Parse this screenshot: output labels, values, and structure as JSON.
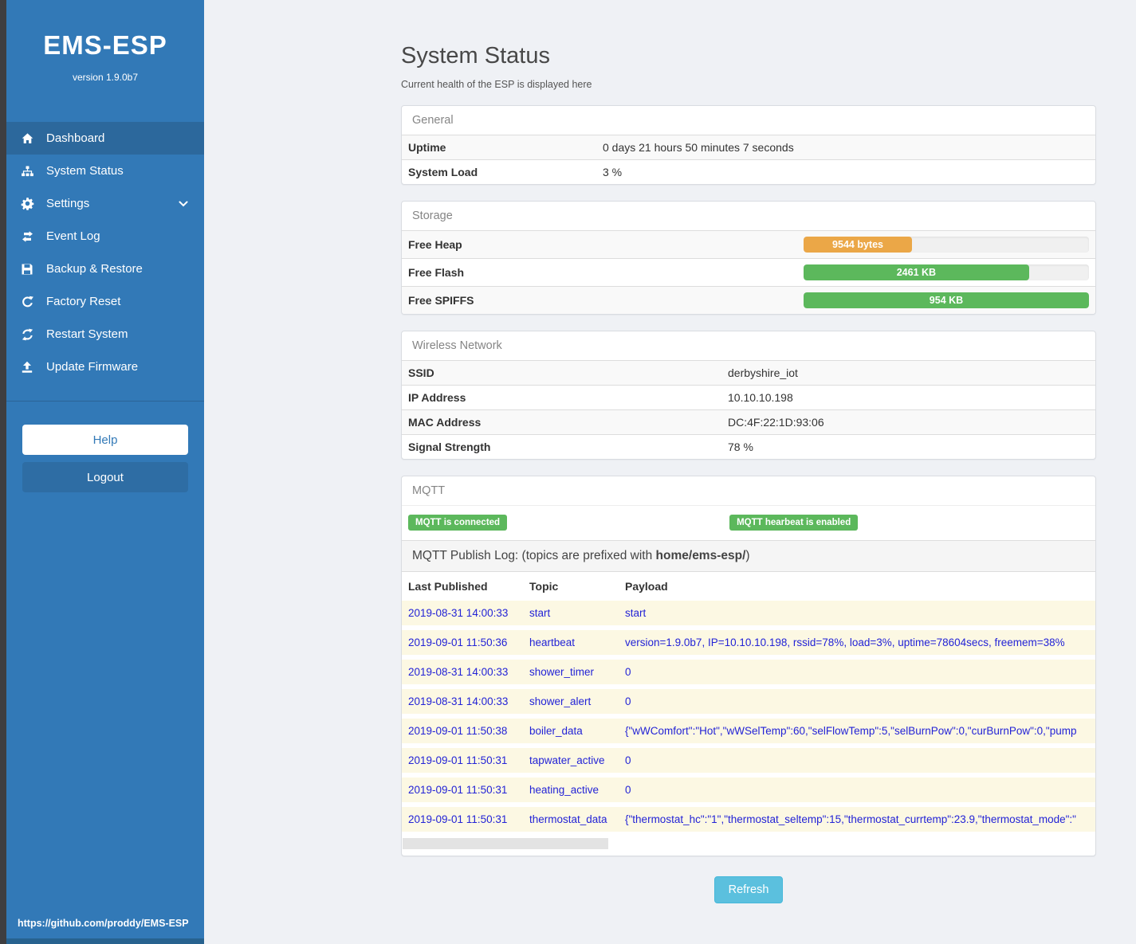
{
  "sidebar": {
    "brand": "EMS-ESP",
    "version": "version 1.9.0b7",
    "items": [
      {
        "label": "Dashboard",
        "icon": "home-icon",
        "active": true
      },
      {
        "label": "System Status",
        "icon": "system-status-icon",
        "active": false
      },
      {
        "label": "Settings",
        "icon": "gear-icon",
        "active": false
      },
      {
        "label": "Event Log",
        "icon": "exchange-icon",
        "active": false
      },
      {
        "label": "Backup & Restore",
        "icon": "save-icon",
        "active": false
      },
      {
        "label": "Factory Reset",
        "icon": "undo-icon",
        "active": false
      },
      {
        "label": "Restart System",
        "icon": "sync-icon",
        "active": false
      },
      {
        "label": "Update Firmware",
        "icon": "upload-icon",
        "active": false
      }
    ],
    "help_label": "Help",
    "logout_label": "Logout",
    "footer_link": "https://github.com/proddy/EMS-ESP"
  },
  "page": {
    "title": "System Status",
    "subtitle": "Current health of the ESP is displayed here",
    "refresh_label": "Refresh"
  },
  "general": {
    "header": "General",
    "rows": [
      {
        "label": "Uptime",
        "value": "0 days 21 hours 50 minutes 7 seconds"
      },
      {
        "label": "System Load",
        "value": "3 %"
      }
    ]
  },
  "storage": {
    "header": "Storage",
    "rows": [
      {
        "label": "Free Heap",
        "bar_label": "9544 bytes",
        "percent": 38,
        "color": "#eba747"
      },
      {
        "label": "Free Flash",
        "bar_label": "2461 KB",
        "percent": 79,
        "color": "#5cb85c"
      },
      {
        "label": "Free SPIFFS",
        "bar_label": "954 KB",
        "percent": 100,
        "color": "#5cb85c"
      }
    ]
  },
  "wireless": {
    "header": "Wireless Network",
    "rows": [
      {
        "label": "SSID",
        "value": "derbyshire_iot"
      },
      {
        "label": "IP Address",
        "value": "10.10.10.198"
      },
      {
        "label": "MAC Address",
        "value": "DC:4F:22:1D:93:06"
      },
      {
        "label": "Signal Strength",
        "value": "78 %"
      }
    ]
  },
  "mqtt": {
    "header": "MQTT",
    "badges": [
      {
        "label": "MQTT is connected"
      },
      {
        "label": "MQTT hearbeat is enabled"
      }
    ],
    "publish_log": {
      "prefix": "MQTT Publish Log: (topics are prefixed with ",
      "bold": "home/ems-esp/",
      "suffix": ")"
    },
    "columns": {
      "time": "Last Published",
      "topic": "Topic",
      "payload": "Payload"
    },
    "rows": [
      {
        "time": "2019-08-31 14:00:33",
        "topic": "start",
        "payload": "start"
      },
      {
        "time": "2019-09-01 11:50:36",
        "topic": "heartbeat",
        "payload": "version=1.9.0b7, IP=10.10.10.198, rssid=78%, load=3%, uptime=78604secs, freemem=38%"
      },
      {
        "time": "2019-08-31 14:00:33",
        "topic": "shower_timer",
        "payload": "0"
      },
      {
        "time": "2019-08-31 14:00:33",
        "topic": "shower_alert",
        "payload": "0"
      },
      {
        "time": "2019-09-01 11:50:38",
        "topic": "boiler_data",
        "payload": "{\"wWComfort\":\"Hot\",\"wWSelTemp\":60,\"selFlowTemp\":5,\"selBurnPow\":0,\"curBurnPow\":0,\"pump"
      },
      {
        "time": "2019-09-01 11:50:31",
        "topic": "tapwater_active",
        "payload": "0"
      },
      {
        "time": "2019-09-01 11:50:31",
        "topic": "heating_active",
        "payload": "0"
      },
      {
        "time": "2019-09-01 11:50:31",
        "topic": "thermostat_data",
        "payload": "{\"thermostat_hc\":\"1\",\"thermostat_seltemp\":15,\"thermostat_currtemp\":23.9,\"thermostat_mode\":\""
      }
    ]
  },
  "colors": {
    "sidebar": "#3279b7",
    "sidebar_active": "#2c689c",
    "badge_green": "#5cb85c",
    "bar_orange": "#eba747",
    "bar_green": "#5cb85c",
    "refresh_blue": "#5bc0de",
    "log_row_bg": "#fcf8e3",
    "log_text_blue": "#2323d6"
  }
}
